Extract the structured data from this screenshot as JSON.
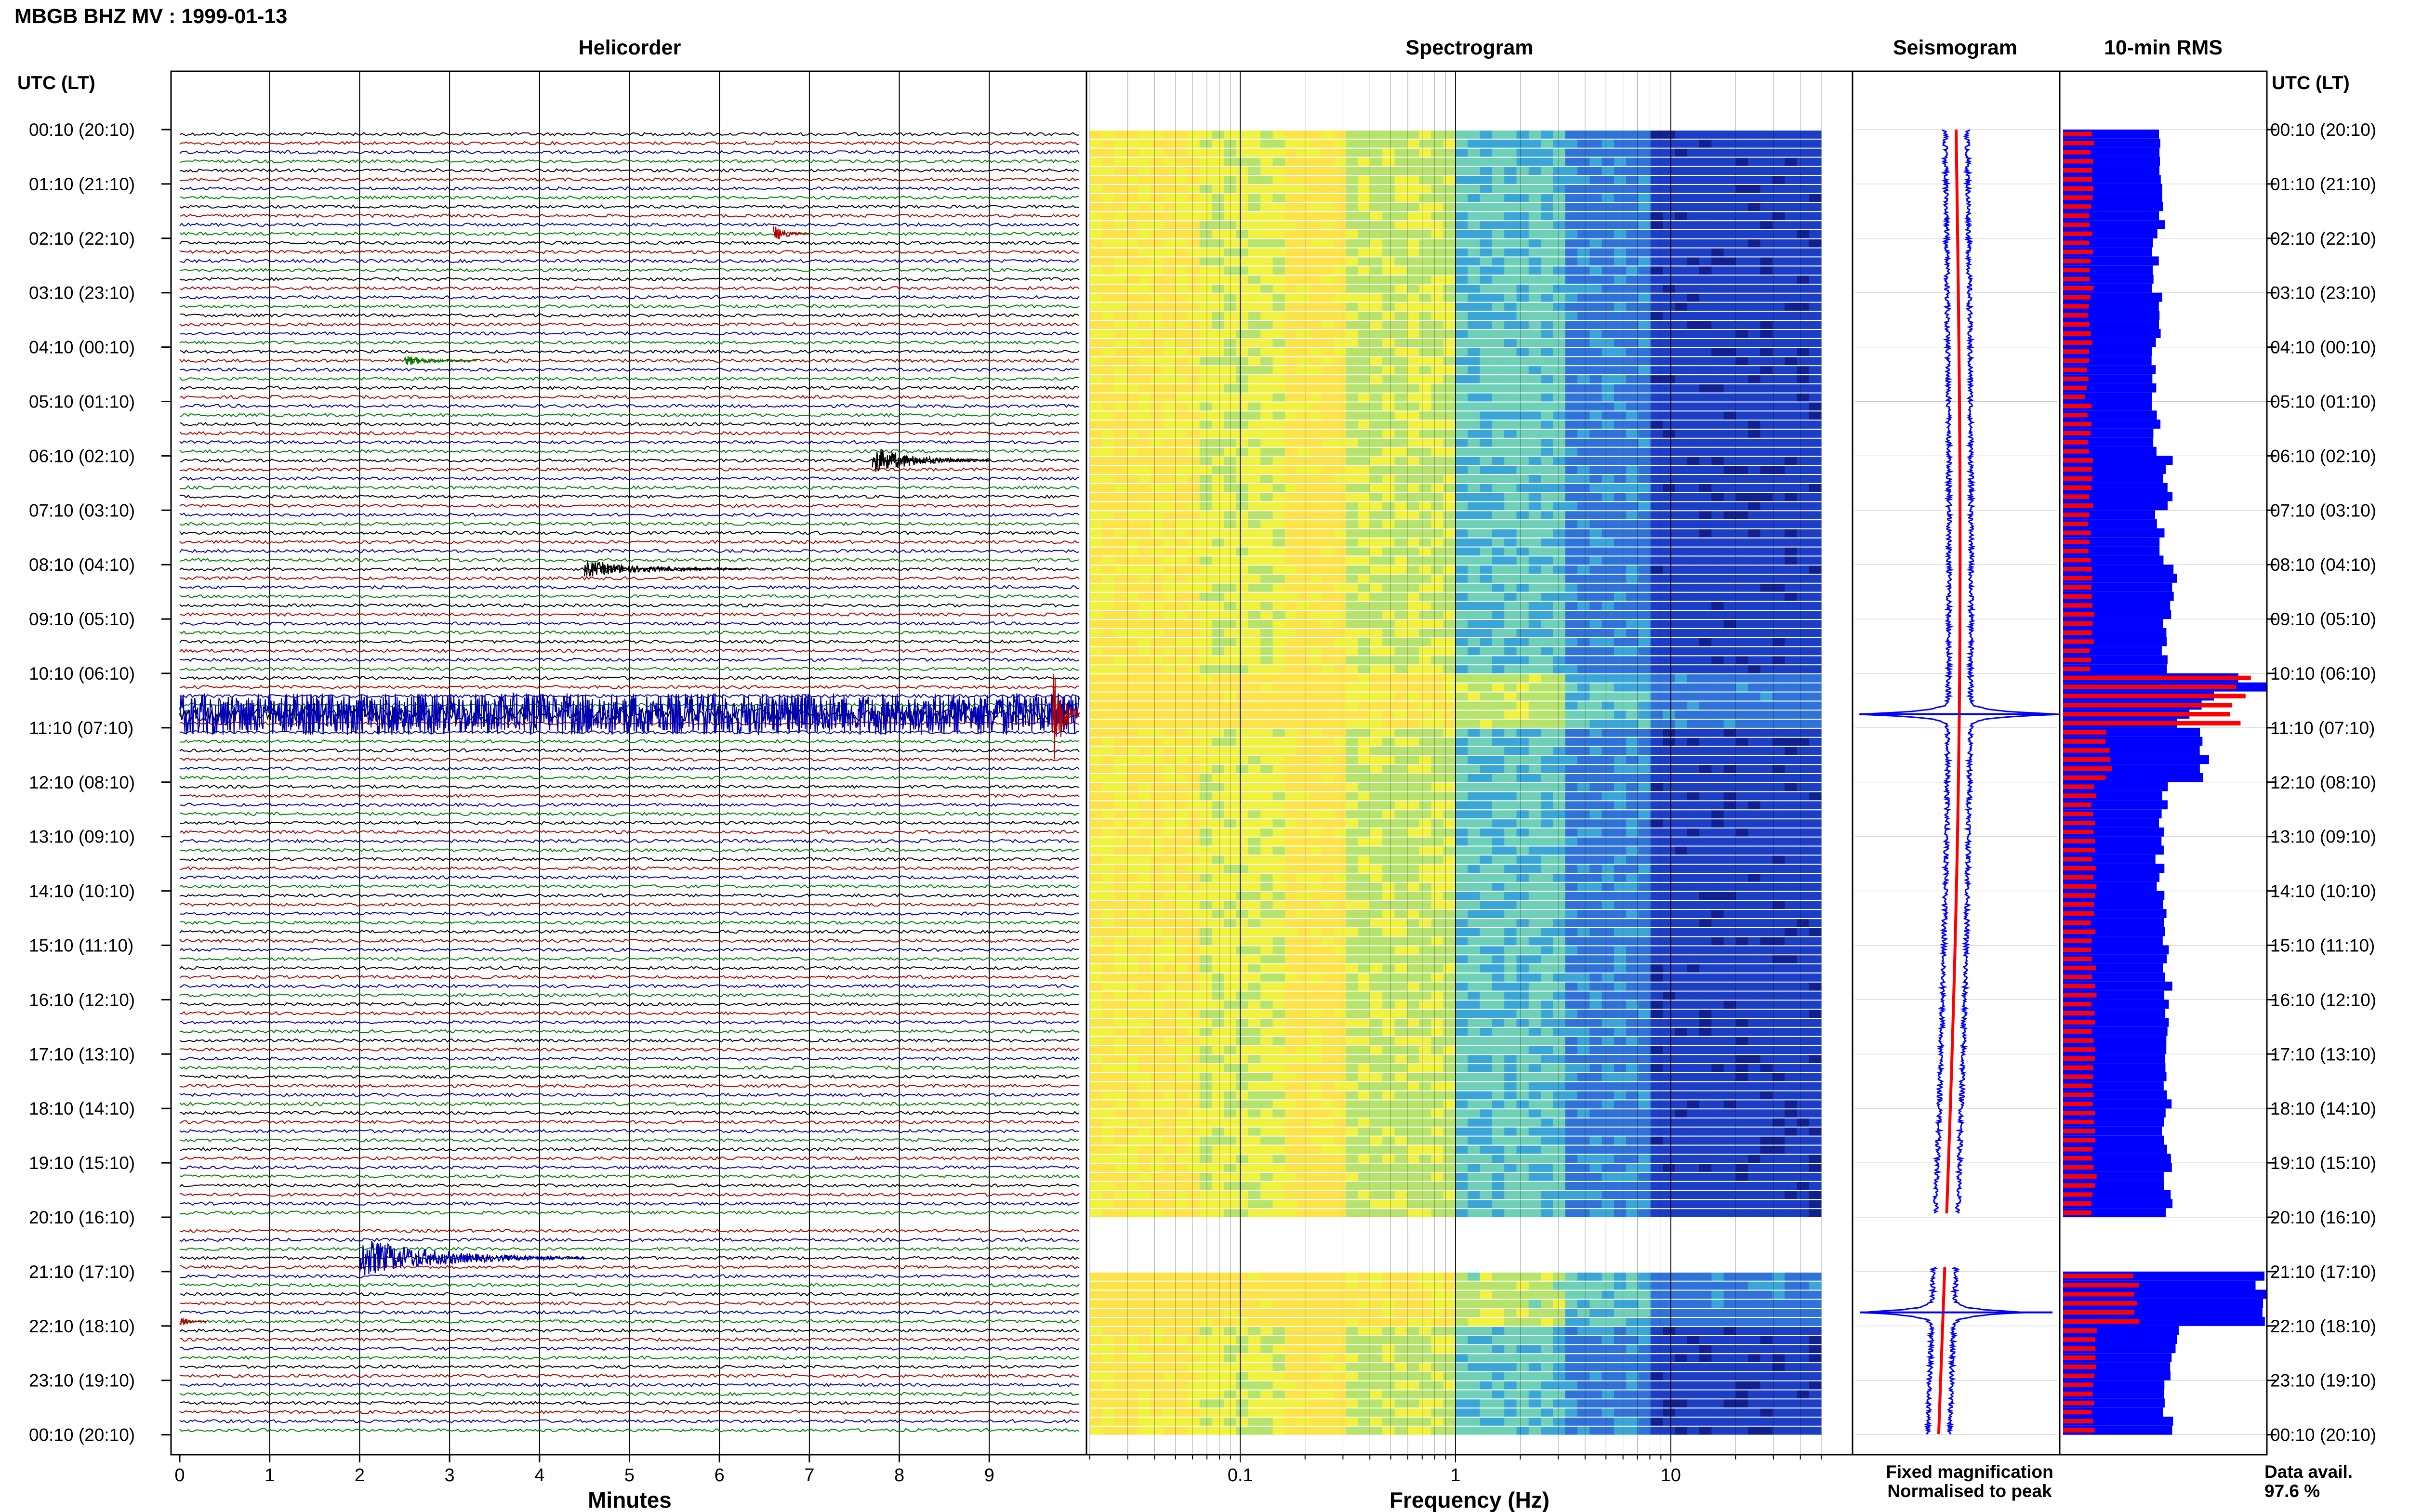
{
  "figure": {
    "title": "MBGB BHZ MV : 1999-01-13",
    "time_axis_label": "UTC (LT)"
  },
  "colors": {
    "trace_cycle": [
      "#000000",
      "#b20000",
      "#0000b2",
      "#008000"
    ],
    "fixed_magnification": "#0000ff",
    "normalised_to_peak": "#ff0000",
    "spectrogram_low": "#0a1f9e",
    "spectrogram_high": "#ffff00"
  },
  "time_labels": [
    "00:10 (20:10)",
    "01:10 (21:10)",
    "02:10 (22:10)",
    "03:10 (23:10)",
    "04:10 (00:10)",
    "05:10 (01:10)",
    "06:10 (02:10)",
    "07:10 (03:10)",
    "08:10 (04:10)",
    "09:10 (05:10)",
    "10:10 (06:10)",
    "11:10 (07:10)",
    "12:10 (08:10)",
    "13:10 (09:10)",
    "14:10 (10:10)",
    "15:10 (11:10)",
    "16:10 (12:10)",
    "17:10 (13:10)",
    "18:10 (14:10)",
    "19:10 (15:10)",
    "20:10 (16:10)",
    "21:10 (17:10)",
    "22:10 (18:10)",
    "23:10 (19:10)",
    "00:10 (20:10)"
  ],
  "legend": {
    "fixed_magnification": "Fixed magnification",
    "normalised_to_peak": "Normalised to peak",
    "data_avail_label": "Data avail.",
    "data_avail_value": "97.6 %"
  },
  "chart_data": [
    {
      "type": "line",
      "panel": "helicorder",
      "title": "Helicorder",
      "xlabel": "Minutes",
      "ylabel": "UTC (LT)",
      "x_ticks": [
        0,
        1,
        2,
        3,
        4,
        5,
        6,
        7,
        8,
        9
      ],
      "xlim": [
        0,
        10
      ],
      "rows_per_hour": 6,
      "row_count": 144,
      "gap_rows": [
        120
      ],
      "events": [
        {
          "start_row": 11,
          "minute": 6.6,
          "duration_min": 0.4,
          "amp": 3,
          "color_index": 1
        },
        {
          "start_row": 25,
          "minute": 2.5,
          "duration_min": 0.8,
          "amp": 2,
          "color_index": 3
        },
        {
          "start_row": 36,
          "minute": 7.7,
          "duration_min": 1.3,
          "amp": 5,
          "color_index": 0
        },
        {
          "start_row": 48,
          "minute": 4.5,
          "duration_min": 1.8,
          "amp": 3,
          "color_index": 0
        },
        {
          "start_row": 64,
          "minute": 0.0,
          "duration_min": 10,
          "amp": 9,
          "color_index": 2
        },
        {
          "start_row": 64,
          "minute": 9.7,
          "duration_min": 0.3,
          "amp": 22,
          "color_index": 1
        },
        {
          "start_row": 124,
          "minute": 2.0,
          "duration_min": 2.5,
          "amp": 7,
          "color_index": 2
        },
        {
          "start_row": 131,
          "minute": 0.0,
          "duration_min": 0.3,
          "amp": 2,
          "color_index": 1
        }
      ]
    },
    {
      "type": "heatmap",
      "panel": "spectrogram",
      "title": "Spectrogram",
      "xlabel": "Frequency (Hz)",
      "x_scale": "log",
      "x_ticks": [
        0.1,
        1,
        10
      ],
      "xlim": [
        0.02,
        50
      ],
      "rows": 24,
      "gap_row": 20,
      "energy_decay": "high at 0.1-1 Hz (yellow), falling to blue above 2 Hz",
      "highlight_rows": [
        10,
        21
      ]
    },
    {
      "type": "line",
      "panel": "seismogram",
      "title": "Seismogram",
      "series": [
        {
          "name": "Fixed magnification",
          "color": "#0000ff"
        },
        {
          "name": "Normalised to peak",
          "color": "#ff0000"
        }
      ],
      "peak_rows": [
        10,
        21
      ],
      "gap_row": 20
    },
    {
      "type": "bar",
      "panel": "rms",
      "title": "10-min RMS",
      "orientation": "horizontal",
      "rows": 144,
      "gap_rows": [
        120
      ],
      "series": [
        {
          "name": "Fixed magnification",
          "color": "#0000ff",
          "hourly_values": [
            0.48,
            0.48,
            0.46,
            0.47,
            0.44,
            0.46,
            0.52,
            0.48,
            0.55,
            0.5,
            1.0,
            0.7,
            0.5,
            0.48,
            0.5,
            0.52,
            0.53,
            0.52,
            0.51,
            0.52,
            0.0,
            1.0,
            0.55,
            0.52
          ]
        },
        {
          "name": "Normalised to peak",
          "color": "#ff0000",
          "hourly_values": [
            0.14,
            0.14,
            0.14,
            0.13,
            0.12,
            0.13,
            0.14,
            0.13,
            0.14,
            0.14,
            0.85,
            0.22,
            0.15,
            0.15,
            0.15,
            0.15,
            0.15,
            0.15,
            0.15,
            0.15,
            0.0,
            0.35,
            0.16,
            0.15
          ]
        }
      ]
    }
  ]
}
